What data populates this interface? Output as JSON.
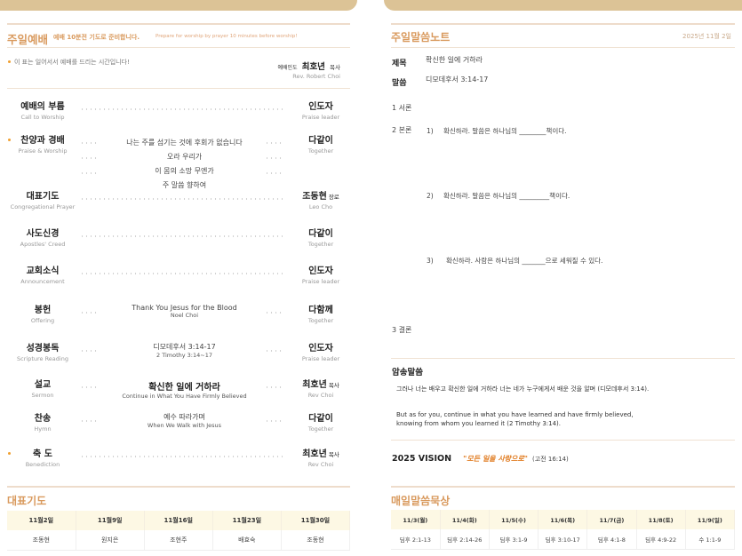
{
  "colors": {
    "accent": "#d99a5e",
    "tab": "#dcc396",
    "bullet": "#f0a030",
    "vision": "#e07b20"
  },
  "worship": {
    "title": "주일예배",
    "prep_ko": "예배 10분전 기도로 준비합니다.",
    "prep_en": "Prepare for worship by prayer 10 minutes before worship!",
    "stand_note": "이 표는 일어서서 예배를 드리는 시간입니다!",
    "leader_label": "예배인도",
    "leader_name": "최호년",
    "leader_title": "목사",
    "leader_en": "Rev. Robert Choi",
    "order": [
      {
        "ko": "예배의 부름",
        "en": "Call to Worship",
        "right_ko": "인도자",
        "right_title": "",
        "right_en": "Praise leader",
        "stand": false
      },
      {
        "ko": "찬양과 경배",
        "en": "Praise & Worship",
        "right_ko": "다같이",
        "right_title": "",
        "right_en": "Together",
        "stand": true,
        "lyrics": [
          "나는 주를 섬기는 것에 후회가 없습니다",
          "오라 우리가",
          "이 몸의 소망 무엔가",
          "주 말씀 향하여"
        ]
      },
      {
        "ko": "대표기도",
        "en": "Congregational Prayer",
        "right_ko": "조동현",
        "right_title": "장로",
        "right_en": "Leo Cho",
        "stand": false
      },
      {
        "ko": "사도신경",
        "en": "Apostles' Creed",
        "right_ko": "다같이",
        "right_title": "",
        "right_en": "Together",
        "stand": false
      },
      {
        "ko": "교회소식",
        "en": "Announcement",
        "right_ko": "인도자",
        "right_title": "",
        "right_en": "Praise leader",
        "stand": false
      },
      {
        "ko": "봉헌",
        "en": "Offering",
        "right_ko": "다함께",
        "right_title": "",
        "right_en": "Together",
        "stand": false,
        "main": "Thank You Jesus for the Blood",
        "sub": "Noel Choi"
      },
      {
        "ko": "성경봉독",
        "en": "Scripture Reading",
        "right_ko": "인도자",
        "right_title": "",
        "right_en": "Praise leader",
        "stand": false,
        "main": "디모데후서 3:14-17",
        "sub": "2 Timothy 3:14~17"
      },
      {
        "ko": "설교",
        "en": "Sermon",
        "right_ko": "최호년",
        "right_title": "목사",
        "right_en": "Rev Choi",
        "stand": false,
        "main": "확신한 일에 거하라",
        "sub": "Continue in What You Have Firmly Believed",
        "big": true
      },
      {
        "ko": "찬송",
        "en": "Hymn",
        "right_ko": "다같이",
        "right_title": "",
        "right_en": "Together",
        "stand": false,
        "main": "예수 따라가며",
        "sub": "When We Walk with Jesus"
      },
      {
        "ko": "축 도",
        "en": "Benediction",
        "right_ko": "최호년",
        "right_title": "목사",
        "right_en": "Rev Choi",
        "stand": true
      }
    ]
  },
  "prayer": {
    "title": "대표기도",
    "dates": [
      "11월2일",
      "11월9일",
      "11월16일",
      "11월23일",
      "11월30일"
    ],
    "names": [
      "조동현",
      "원지은",
      "조현주",
      "배효숙",
      "조동현"
    ]
  },
  "notes": {
    "title": "주일말씀노트",
    "date": "2025년 11월 2일",
    "subject_label": "제목",
    "subject": "확신한 일에 거하라",
    "scripture_label": "말씀",
    "scripture": "디모데후서 3:14-17",
    "intro": "1 서론",
    "body": "2 본론",
    "points": [
      {
        "num": "1)",
        "text": "확신하라. 말씀은 하나님의 ________책이다."
      },
      {
        "num": "2)",
        "text": "확신하라. 말씀은 하나님의 _________책이다."
      },
      {
        "num": "3)",
        "text": "확신하라. 사람은 하나님의 _______으로 세워질 수 있다."
      }
    ],
    "conclusion": "3 결론"
  },
  "memory": {
    "title": "암송말씀",
    "ko": "그러나 너는 배우고 확신한 일에 거하라 너는 네가 누구에게서 배운 것을 알며 (디모데후서 3:14).",
    "en1": "But as for you, continue in what you have learned and have firmly believed,",
    "en2": "knowing from whom you learned it (2 Timothy 3:14)."
  },
  "vision": {
    "label": "2025 VISION",
    "motto": "\"모든 일을 사랑으로\"",
    "ref": "(고전 16:14)"
  },
  "daily": {
    "title": "매일말씀묵상",
    "dates": [
      "11/3(월)",
      "11/4(화)",
      "11/5(수)",
      "11/6(목)",
      "11/7(금)",
      "11/8(토)",
      "11/9(일)"
    ],
    "readings": [
      "딤후 2:1-13",
      "딤후 2:14-26",
      "딤후 3:1-9",
      "딤후 3:10-17",
      "딤후 4:1-8",
      "딤후 4:9-22",
      "수 1:1-9"
    ]
  }
}
